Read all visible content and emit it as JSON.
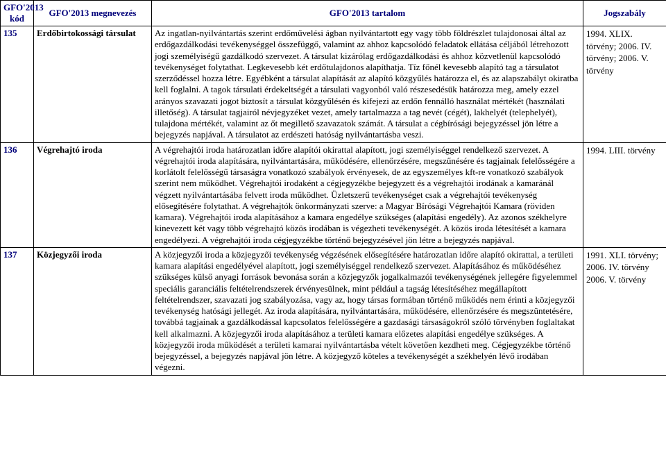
{
  "headers": {
    "kod": "GFO'2013 kód",
    "meg": "GFO'2013 megnevezés",
    "tart": "GFO'2013 tartalom",
    "jog": "Jogszabály"
  },
  "rows": [
    {
      "kod": "135",
      "meg": "Erdőbirtokossági társulat",
      "tart": "Az ingatlan-nyilvántartás szerint erdőművelési ágban nyilvántartott egy vagy több földrészlet tulajdonosai által az erdőgazdálkodási tevékenységgel összefüggő, valamint az ahhoz kapcsolódó feladatok ellátása céljából létrehozott jogi személyiségű gazdálkodó szervezet. A társulat kizárólag erdőgazdálkodási és ahhoz közvetlenül kapcsolódó tevékenységet folytathat. Legkevesebb két erdőtulajdonos alapíthatja. Tíz főnél kevesebb alapító tag a társulatot szerződéssel hozza létre. Egyébként a társulat alapítását az alapító közgyűlés határozza el, és az alapszabályt okiratba kell foglalni. A tagok társulati érdekeltségét a társulati vagyonból való részesedésük határozza meg, amely ezzel arányos szavazati jogot biztosít a társulat közgyűlésén és kifejezi az erdőn fennálló használat mértékét (használati illetőség). A társulat tagjairól névjegyzéket vezet, amely tartalmazza a tag nevét (cégét), lakhelyét (telephelyét), tulajdona mértékét, valamint az őt megillető szavazatok számát. A társulat a cégbírósági bejegyzéssel jön létre a bejegyzés napjával. A társulatot az erdészeti hatóság nyilvántartásba veszi.",
      "jog": "1994. XLIX. törvény; 2006. IV. törvény; 2006. V. törvény"
    },
    {
      "kod": "136",
      "meg": "Végrehajtó iroda",
      "tart": "A végrehajtói iroda határozatlan időre alapítói okirattal alapított, jogi személyiséggel rendelkező szervezet. A végrehajtói iroda alapítására, nyilvántartására, működésére, ellenőrzésére, megszűnésére és tagjainak felelősségére a korlátolt felelősségű társaságra vonatkozó szabályok érvényesek, de az egyszemélyes kft-re vonatkozó szabályok szerint nem működhet. Végrehajtói irodaként a cégjegyzékbe bejegyzett és a végrehajtói irodának a kamaránál végzett nyilvántartásába felvett iroda működhet. Üzletszerű tevékenységet csak a végrehajtói tevékenység elősegítésére folytathat. A végrehajtók önkormányzati szerve: a Magyar Bírósági Végrehajtói Kamara (röviden kamara). Végrehajtói iroda alapításához a kamara engedélye szükséges (alapítási engedély). Az azonos székhelyre kinevezett két vagy több végrehajtó közös irodában is végezheti tevékenységét. A közös iroda létesítését a kamara engedélyezi. A végrehajtói iroda cégjegyzékbe történő bejegyzésével jön létre a bejegyzés napjával.",
      "jog": "1994. LIII. törvény"
    },
    {
      "kod": "137",
      "meg": "Közjegyzői iroda",
      "tart": "A közjegyzői iroda a közjegyzői tevékenység végzésének elősegítésére határozatlan időre alapító okirattal, a területi kamara alapítási engedélyével alapított, jogi személyiséggel rendelkező szervezet. Alapításához és működéséhez szükséges külső anyagi források bevonása során a közjegyzők jogalkalmazói tevékenységének jellegére figyelemmel speciális garanciális feltételrendszerek érvényesülnek, mint például a tagság létesítéséhez megállapított feltételrendszer, szavazati jog szabályozása, vagy az, hogy társas formában történő működés nem érinti a közjegyzői tevékenység hatósági jellegét. Az iroda alapítására, nyilvántartására, működésére, ellenőrzésére és megszüntetésére, továbbá tagjainak a gazdálkodással kapcsolatos felelősségére a gazdasági társaságokról szóló törvényben foglaltakat kell alkalmazni. A közjegyzői iroda alapításához a területi kamara előzetes alapítási engedélye szükséges. A közjegyzői iroda működését a területi kamarai nyilvántartásba vételt követően kezdheti meg. Cégjegyzékbe történő bejegyzéssel, a bejegyzés napjával jön létre. A közjegyző köteles a tevékenységét a székhelyén lévő irodában végezni.",
      "jog": "1991. XLI. törvény; 2006. IV. törvény 2006. V. törvény"
    }
  ]
}
